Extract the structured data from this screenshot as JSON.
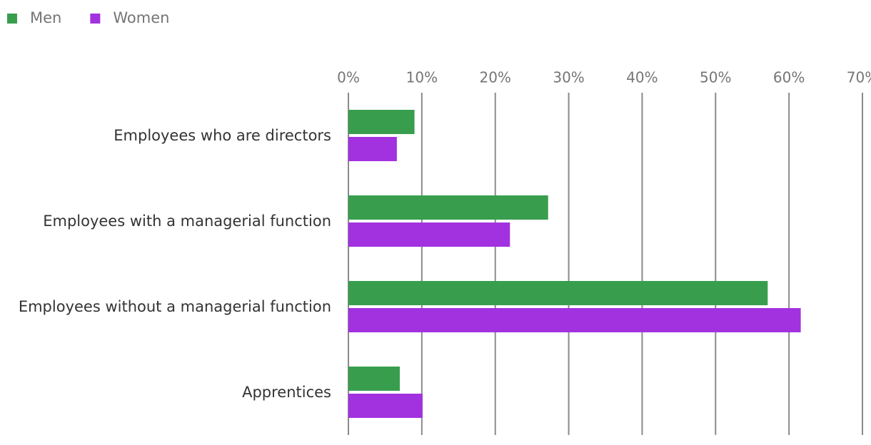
{
  "chart_data": {
    "type": "bar",
    "orientation": "horizontal",
    "categories": [
      "Employees who are directors",
      "Employees with a managerial function",
      "Employees without a managerial function",
      "Apprentices"
    ],
    "series": [
      {
        "name": "Men",
        "color": "#389e4e",
        "values": [
          9,
          27.2,
          57.1,
          7
        ]
      },
      {
        "name": "Women",
        "color": "#a231e0",
        "values": [
          6.6,
          22,
          61.6,
          10.1
        ]
      }
    ],
    "xlim": [
      0,
      70
    ],
    "xticks": [
      {
        "value": 0,
        "label": "0%"
      },
      {
        "value": 10,
        "label": "10%"
      },
      {
        "value": 20,
        "label": "20%"
      },
      {
        "value": 30,
        "label": "30%"
      },
      {
        "value": 40,
        "label": "40%"
      },
      {
        "value": 50,
        "label": "50%"
      },
      {
        "value": 60,
        "label": "60%"
      },
      {
        "value": 70,
        "label": "70%"
      }
    ],
    "grid": true,
    "legend": "top-left"
  }
}
